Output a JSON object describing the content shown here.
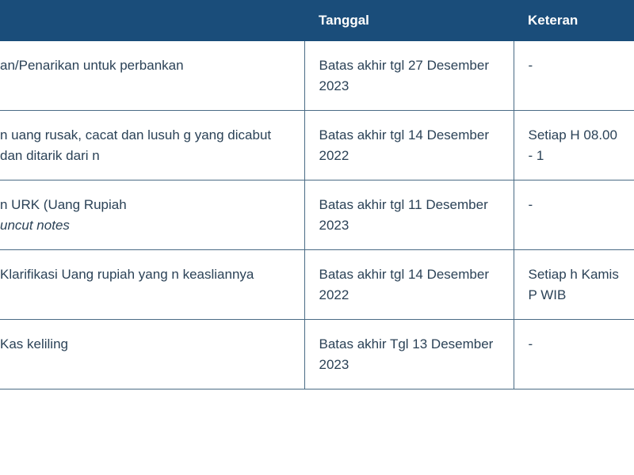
{
  "table": {
    "header_bg_color": "#1a4d7a",
    "header_text_color": "#ffffff",
    "cell_text_color": "#2b4257",
    "border_color": "#4a6b85",
    "font_size_header": 17,
    "font_size_cell": 17,
    "columns": [
      {
        "label": "",
        "width_pct": 48
      },
      {
        "label": "Tanggal",
        "width_pct": 33
      },
      {
        "label": "Keteran",
        "width_pct": 19
      }
    ],
    "rows": [
      {
        "desc": "an/Penarikan untuk perbankan",
        "date": "Batas akhir tgl 27 Desember 2023",
        "note": "-"
      },
      {
        "desc": "n uang rusak, cacat dan lusuh g yang dicabut dan ditarik dari n",
        "date": "Batas akhir tgl 14 Desember 2022",
        "note": "Setiap H 08.00 - 1"
      },
      {
        "desc_line1": "n URK (Uang Rupiah",
        "desc_line2": "uncut notes",
        "date": "Batas akhir tgl 11 Desember 2023",
        "note": "-"
      },
      {
        "desc": "Klarifikasi Uang rupiah yang n keasliannya",
        "date": "Batas akhir tgl 14 Desember 2022",
        "note": "Setiap h Kamis P WIB"
      },
      {
        "desc": "Kas keliling",
        "date": "Batas akhir Tgl 13 Desember 2023",
        "note": "-"
      }
    ]
  }
}
